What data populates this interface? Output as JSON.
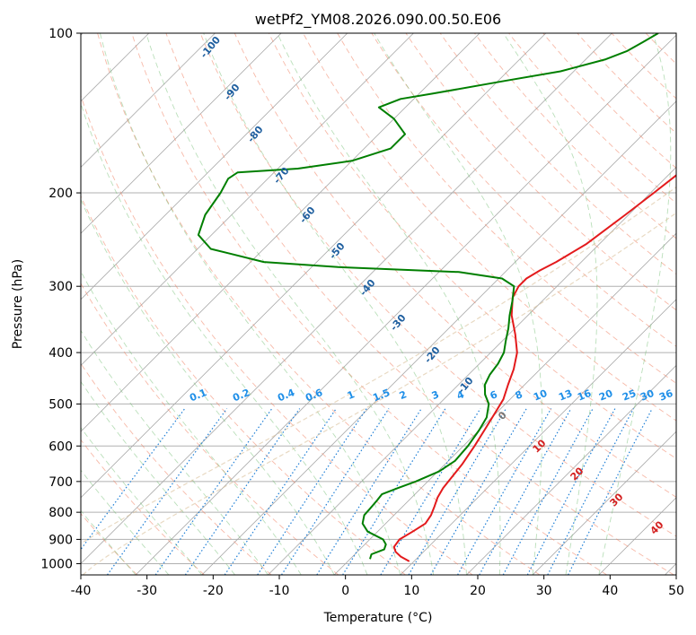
{
  "chart_data": {
    "type": "line",
    "subtype": "skew-T log-p diagram",
    "title": "wetPf2_YM08.2026.090.00.50.E06",
    "xlabel": "Temperature (°C)",
    "ylabel": "Pressure (hPa)",
    "xlim": [
      -40,
      50
    ],
    "ylim": [
      1050,
      100
    ],
    "x_ticks": [
      -40,
      -30,
      -20,
      -10,
      0,
      10,
      20,
      30,
      40,
      50
    ],
    "y_ticks": [
      1000,
      900,
      800,
      700,
      600,
      500,
      400,
      300,
      200,
      100
    ],
    "isotherms_every_deg": 10,
    "dry_adiabat_labels": [
      -100,
      -90,
      -80,
      -70,
      -60,
      -50,
      -40,
      -30,
      -20,
      -10
    ],
    "moist_adiabat_labels": [
      0,
      10,
      20,
      30,
      40
    ],
    "mixing_ratio_labels": [
      "0.1",
      "0.2",
      "0.4",
      "0.6",
      "1",
      "1.5",
      "2",
      "3",
      "4",
      "6",
      "8",
      "10",
      "13",
      "16",
      "20",
      "25",
      "30",
      "36"
    ],
    "series": [
      {
        "name": "temperature",
        "color": "#e31a1c",
        "points": [
          [
            990,
            9.3
          ],
          [
            970,
            7.3
          ],
          [
            950,
            5.8
          ],
          [
            930,
            4.8
          ],
          [
            900,
            4.5
          ],
          [
            870,
            5.3
          ],
          [
            840,
            6.0
          ],
          [
            810,
            5.6
          ],
          [
            780,
            4.8
          ],
          [
            750,
            3.9
          ],
          [
            720,
            3.3
          ],
          [
            690,
            3.0
          ],
          [
            650,
            2.6
          ],
          [
            600,
            1.7
          ],
          [
            560,
            0.8
          ],
          [
            520,
            -0.2
          ],
          [
            490,
            -1.0
          ],
          [
            460,
            -2.5
          ],
          [
            430,
            -4.0
          ],
          [
            400,
            -6.0
          ],
          [
            370,
            -9.0
          ],
          [
            340,
            -12.5
          ],
          [
            315,
            -15.0
          ],
          [
            300,
            -15.8
          ],
          [
            290,
            -15.8
          ],
          [
            280,
            -15.0
          ],
          [
            270,
            -13.8
          ],
          [
            250,
            -12.0
          ],
          [
            220,
            -10.5
          ],
          [
            200,
            -9.5
          ],
          [
            180,
            -8.5
          ],
          [
            160,
            -7.0
          ],
          [
            140,
            -5.5
          ],
          [
            125,
            -3.0
          ],
          [
            110,
            -1.5
          ],
          [
            100,
            -1.5
          ]
        ]
      },
      {
        "name": "dewpoint",
        "color": "#007f00",
        "points": [
          [
            980,
            3.0
          ],
          [
            960,
            2.5
          ],
          [
            940,
            3.7
          ],
          [
            920,
            3.2
          ],
          [
            900,
            2.0
          ],
          [
            870,
            -1.5
          ],
          [
            840,
            -3.5
          ],
          [
            810,
            -4.5
          ],
          [
            790,
            -4.6
          ],
          [
            760,
            -4.8
          ],
          [
            740,
            -5.0
          ],
          [
            720,
            -3.5
          ],
          [
            700,
            -1.8
          ],
          [
            670,
            0.2
          ],
          [
            640,
            1.0
          ],
          [
            600,
            0.7
          ],
          [
            560,
            0.0
          ],
          [
            530,
            -0.8
          ],
          [
            500,
            -2.5
          ],
          [
            480,
            -4.5
          ],
          [
            460,
            -6.0
          ],
          [
            440,
            -6.8
          ],
          [
            420,
            -7.2
          ],
          [
            400,
            -8.0
          ],
          [
            380,
            -9.5
          ],
          [
            360,
            -11.0
          ],
          [
            340,
            -12.8
          ],
          [
            320,
            -14.5
          ],
          [
            300,
            -16.5
          ],
          [
            290,
            -19.5
          ],
          [
            282,
            -27.0
          ],
          [
            276,
            -46.0
          ],
          [
            270,
            -58.0
          ],
          [
            255,
            -68.0
          ],
          [
            240,
            -72.0
          ],
          [
            220,
            -74.0
          ],
          [
            200,
            -75.0
          ],
          [
            188,
            -76.0
          ],
          [
            183,
            -75.5
          ],
          [
            180,
            -67.0
          ],
          [
            174,
            -60.0
          ],
          [
            165,
            -56.0
          ],
          [
            155,
            -56.0
          ],
          [
            145,
            -60.0
          ],
          [
            138,
            -64.0
          ],
          [
            133,
            -62.0
          ],
          [
            130,
            -58.0
          ],
          [
            123,
            -49.0
          ],
          [
            118,
            -42.0
          ],
          [
            112,
            -37.0
          ],
          [
            108,
            -35.0
          ],
          [
            104,
            -34.0
          ],
          [
            100,
            -33.0
          ]
        ]
      }
    ]
  }
}
